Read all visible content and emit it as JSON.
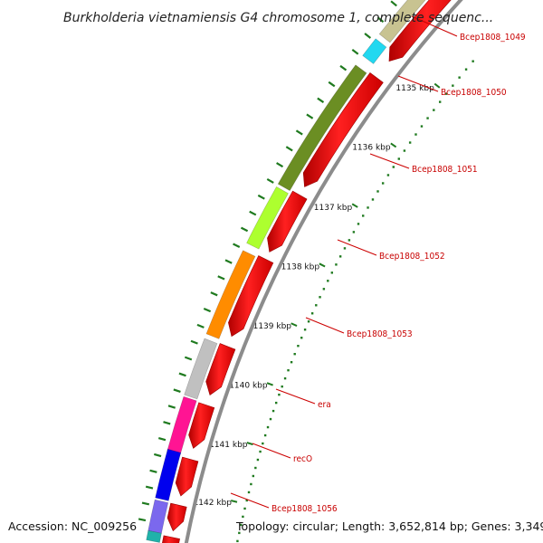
{
  "title": "Burkholderia vietnamiensis G4 chromosome 1, complete sequenc...",
  "accession": "Accession: NC_009256",
  "topology": "Topology: circular; Length: 3,652,814 bp; Genes: 3,349",
  "colors": {
    "forward_strand": "#ff0000",
    "ring": "#8c8c8c",
    "tick": "#1f7a1f",
    "label": "#cc0000"
  },
  "kbp_labels": [
    "1135 kbp",
    "1136 kbp",
    "1137 kbp",
    "1138 kbp",
    "1139 kbp",
    "1140 kbp",
    "1141 kbp",
    "1142 kbp"
  ],
  "genes": [
    {
      "name": "Bcep1808_1049",
      "color": "#c8c391"
    },
    {
      "name": "Bcep1808_1050",
      "color": "#22d8f0"
    },
    {
      "name": "Bcep1808_1051",
      "color": "#6b8e23"
    },
    {
      "name": "Bcep1808_1052",
      "color": "#adff2f"
    },
    {
      "name": "Bcep1808_1053",
      "color": "#ff8c00"
    },
    {
      "name": "era",
      "color": "#c0c0c0"
    },
    {
      "name": "recO",
      "color": "#ff1493"
    },
    {
      "name": "Bcep1808_1056",
      "color": "#0000ee"
    },
    {
      "name": "",
      "color": "#7b68ee"
    },
    {
      "name": "",
      "color": "#20b2aa"
    }
  ]
}
